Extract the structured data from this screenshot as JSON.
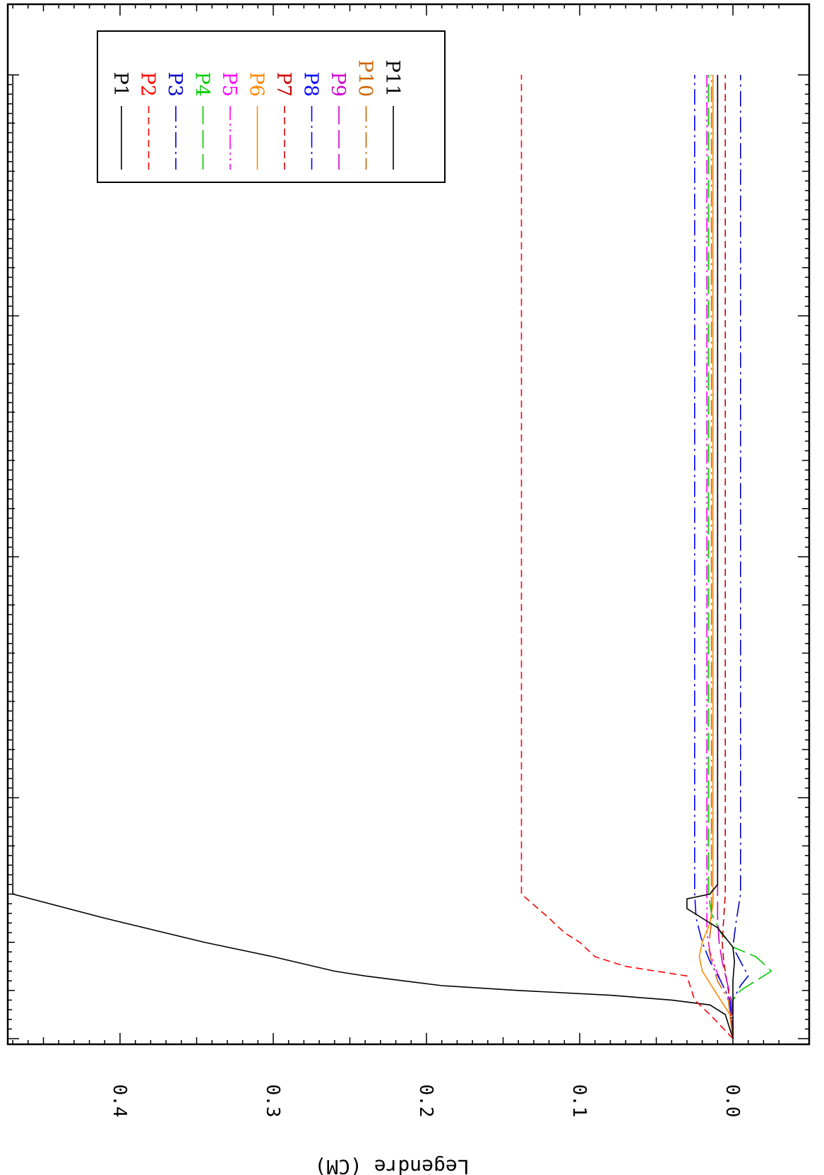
{
  "chart_data": {
    "type": "line",
    "title": "",
    "xlabel": "",
    "ylabel": "Legendre (CM)",
    "xlim": [
      0,
      200
    ],
    "ylim": [
      -0.03,
      0.48
    ],
    "x_ticks": [
      "0",
      "50",
      "100",
      "150",
      "200"
    ],
    "y_ticks": [
      "0.0",
      "0.1",
      "0.2",
      "0.3",
      "0.4"
    ],
    "grid": false,
    "legend_position": "top-right",
    "series": [
      {
        "name": "P1",
        "color": "#000000",
        "dash": "solid",
        "points": [
          [
            0,
            0
          ],
          [
            5,
            0.005
          ],
          [
            7,
            0.015
          ],
          [
            8,
            0.04
          ],
          [
            9,
            0.08
          ],
          [
            10,
            0.14
          ],
          [
            11,
            0.19
          ],
          [
            12,
            0.215
          ],
          [
            13,
            0.24
          ],
          [
            14,
            0.26
          ],
          [
            17,
            0.3
          ],
          [
            20,
            0.345
          ],
          [
            25,
            0.41
          ],
          [
            30,
            0.47
          ],
          [
            200,
            0.47
          ]
        ]
      },
      {
        "name": "P2",
        "color": "#ff0000",
        "dash": "dashed",
        "points": [
          [
            0,
            0
          ],
          [
            5,
            0.015
          ],
          [
            8,
            0.025
          ],
          [
            10,
            0.027
          ],
          [
            13,
            0.03
          ],
          [
            15,
            0.07
          ],
          [
            17,
            0.09
          ],
          [
            20,
            0.1
          ],
          [
            22,
            0.11
          ],
          [
            25,
            0.12
          ],
          [
            30,
            0.138
          ],
          [
            200,
            0.138
          ]
        ]
      },
      {
        "name": "P3",
        "color": "#0000cc",
        "dash": "dashdot",
        "points": [
          [
            0,
            0
          ],
          [
            8,
            0
          ],
          [
            11,
            -0.005
          ],
          [
            13,
            -0.01
          ],
          [
            16,
            -0.005
          ],
          [
            19,
            0
          ],
          [
            24,
            -0.002
          ],
          [
            30,
            -0.005
          ],
          [
            200,
            -0.005
          ]
        ]
      },
      {
        "name": "P4",
        "color": "#00cc00",
        "dash": "longdash",
        "points": [
          [
            0,
            0
          ],
          [
            8,
            0
          ],
          [
            10,
            -0.005
          ],
          [
            12,
            -0.015
          ],
          [
            14,
            -0.025
          ],
          [
            15,
            -0.022
          ],
          [
            17,
            -0.015
          ],
          [
            19,
            0
          ],
          [
            22,
            0.008
          ],
          [
            26,
            0.014
          ],
          [
            30,
            0.016
          ],
          [
            200,
            0.016
          ]
        ]
      },
      {
        "name": "P5",
        "color": "#ff00ff",
        "dash": "dashdotdot",
        "points": [
          [
            0,
            0
          ],
          [
            8,
            0.002
          ],
          [
            12,
            0.008
          ],
          [
            15,
            0.012
          ],
          [
            18,
            0.015
          ],
          [
            22,
            0.017
          ],
          [
            26,
            0.017
          ],
          [
            30,
            0.017
          ],
          [
            200,
            0.017
          ]
        ]
      },
      {
        "name": "P6",
        "color": "#ff8800",
        "dash": "solid",
        "points": [
          [
            0,
            0
          ],
          [
            5,
            0.002
          ],
          [
            8,
            0.008
          ],
          [
            11,
            0.014
          ],
          [
            14,
            0.02
          ],
          [
            17,
            0.022
          ],
          [
            20,
            0.02
          ],
          [
            24,
            0.015
          ],
          [
            28,
            0.013
          ],
          [
            30,
            0.013
          ],
          [
            200,
            0.013
          ]
        ]
      },
      {
        "name": "P7",
        "color": "#cc0000",
        "dash": "dashed",
        "points": [
          [
            0,
            0
          ],
          [
            8,
            0.002
          ],
          [
            12,
            0.004
          ],
          [
            16,
            0.006
          ],
          [
            20,
            0.007
          ],
          [
            25,
            0.006
          ],
          [
            30,
            0.005
          ],
          [
            200,
            0.005
          ]
        ]
      },
      {
        "name": "P8",
        "color": "#0000ff",
        "dash": "dashdot",
        "points": [
          [
            0,
            0
          ],
          [
            8,
            0.002
          ],
          [
            12,
            0.008
          ],
          [
            16,
            0.015
          ],
          [
            20,
            0.02
          ],
          [
            25,
            0.024
          ],
          [
            30,
            0.025
          ],
          [
            200,
            0.025
          ]
        ]
      },
      {
        "name": "P9",
        "color": "#cc00cc",
        "dash": "longdash",
        "points": [
          [
            0,
            0
          ],
          [
            8,
            0.001
          ],
          [
            12,
            0.004
          ],
          [
            16,
            0.007
          ],
          [
            20,
            0.009
          ],
          [
            25,
            0.01
          ],
          [
            30,
            0.01
          ],
          [
            200,
            0.01
          ]
        ]
      },
      {
        "name": "P10",
        "color": "#cc6600",
        "dash": "dashdot",
        "points": [
          [
            0,
            0
          ],
          [
            8,
            0.003
          ],
          [
            12,
            0.01
          ],
          [
            16,
            0.014
          ],
          [
            19,
            0.016
          ],
          [
            24,
            0.014
          ],
          [
            30,
            0.014
          ],
          [
            200,
            0.014
          ]
        ]
      },
      {
        "name": "P11",
        "color": "#000000",
        "dash": "solid",
        "points": [
          [
            0,
            0
          ],
          [
            8,
            0
          ],
          [
            12,
            0
          ],
          [
            16,
            -0.001
          ],
          [
            19,
            0
          ],
          [
            23,
            0.01
          ],
          [
            25,
            0.02
          ],
          [
            27,
            0.03
          ],
          [
            29,
            0.03
          ],
          [
            30,
            0.015
          ],
          [
            32,
            0.01
          ],
          [
            200,
            0.01
          ]
        ]
      }
    ]
  }
}
